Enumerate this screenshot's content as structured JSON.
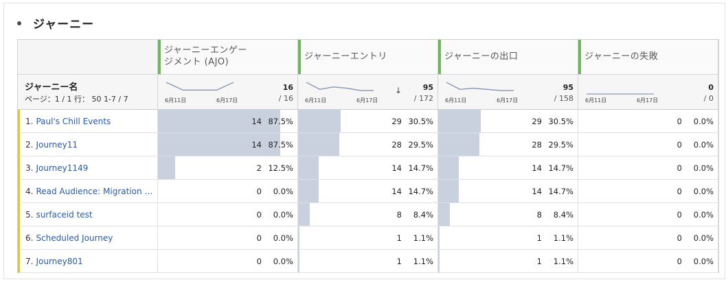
{
  "panel": {
    "title": "ジャーニー"
  },
  "columns": [
    {
      "label_line1": "ジャーニーエンゲー",
      "label_line2": "ジメント (AJO)",
      "total": "16",
      "denom": "/ 16",
      "x_start": "6月11日",
      "x_end": "6月17日",
      "sparkline": [
        3,
        1,
        1,
        1,
        3
      ],
      "sort": ""
    },
    {
      "label_line1": "ジャーニーエントリ",
      "label_line2": "",
      "total": "95",
      "denom": "/ 172",
      "x_start": "6月11日",
      "x_end": "6月17日",
      "sparkline": [
        5,
        2,
        3,
        2.5,
        1.5,
        1.5
      ],
      "sort": "↓"
    },
    {
      "label_line1": "ジャーニーの出口",
      "label_line2": "",
      "total": "95",
      "denom": "/ 158",
      "x_start": "6月11日",
      "x_end": "6月17日",
      "sparkline": [
        5,
        2,
        2.5,
        2,
        1.5,
        1.5
      ],
      "sort": ""
    },
    {
      "label_line1": "ジャーニーの失敗",
      "label_line2": "",
      "total": "0",
      "denom": "/ 0",
      "x_start": "6月11日",
      "x_end": "6月17日",
      "sparkline": [
        0,
        0,
        0,
        0,
        0
      ],
      "sort": ""
    }
  ],
  "dimension": {
    "header": "ジャーニー名",
    "pager": "ページ：1 / 1 行： 50 1-7 / 7"
  },
  "rows": [
    {
      "idx": "1.",
      "name": "Paul's Chill Events",
      "values": [
        {
          "count": "14",
          "pct": "87.5%",
          "f": 0.875
        },
        {
          "count": "29",
          "pct": "30.5%",
          "f": 0.305
        },
        {
          "count": "29",
          "pct": "30.5%",
          "f": 0.305
        },
        {
          "count": "0",
          "pct": "0.0%",
          "f": 0
        }
      ]
    },
    {
      "idx": "2.",
      "name": "Journey11",
      "values": [
        {
          "count": "14",
          "pct": "87.5%",
          "f": 0.875
        },
        {
          "count": "28",
          "pct": "29.5%",
          "f": 0.295
        },
        {
          "count": "28",
          "pct": "29.5%",
          "f": 0.295
        },
        {
          "count": "0",
          "pct": "0.0%",
          "f": 0
        }
      ]
    },
    {
      "idx": "3.",
      "name": "Journey1149",
      "values": [
        {
          "count": "2",
          "pct": "12.5%",
          "f": 0.125
        },
        {
          "count": "14",
          "pct": "14.7%",
          "f": 0.147
        },
        {
          "count": "14",
          "pct": "14.7%",
          "f": 0.147
        },
        {
          "count": "0",
          "pct": "0.0%",
          "f": 0
        }
      ]
    },
    {
      "idx": "4.",
      "name": "Read Audience: Migration T...",
      "values": [
        {
          "count": "0",
          "pct": "0.0%",
          "f": 0
        },
        {
          "count": "14",
          "pct": "14.7%",
          "f": 0.147
        },
        {
          "count": "14",
          "pct": "14.7%",
          "f": 0.147
        },
        {
          "count": "0",
          "pct": "0.0%",
          "f": 0
        }
      ]
    },
    {
      "idx": "5.",
      "name": "surfaceid test",
      "values": [
        {
          "count": "0",
          "pct": "0.0%",
          "f": 0
        },
        {
          "count": "8",
          "pct": "8.4%",
          "f": 0.084
        },
        {
          "count": "8",
          "pct": "8.4%",
          "f": 0.084
        },
        {
          "count": "0",
          "pct": "0.0%",
          "f": 0
        }
      ]
    },
    {
      "idx": "6.",
      "name": "Scheduled Journey",
      "values": [
        {
          "count": "0",
          "pct": "0.0%",
          "f": 0
        },
        {
          "count": "1",
          "pct": "1.1%",
          "f": 0.011
        },
        {
          "count": "1",
          "pct": "1.1%",
          "f": 0.011
        },
        {
          "count": "0",
          "pct": "0.0%",
          "f": 0
        }
      ]
    },
    {
      "idx": "7.",
      "name": "Journey801",
      "values": [
        {
          "count": "0",
          "pct": "0.0%",
          "f": 0
        },
        {
          "count": "1",
          "pct": "1.1%",
          "f": 0.011
        },
        {
          "count": "1",
          "pct": "1.1%",
          "f": 0.011
        },
        {
          "count": "0",
          "pct": "0.0%",
          "f": 0
        }
      ]
    }
  ],
  "colors": {
    "metric_bar": "#6eb55e",
    "dimension_bar": "#dac450",
    "fill": "#c9d0de",
    "link": "#2c5aa0"
  }
}
